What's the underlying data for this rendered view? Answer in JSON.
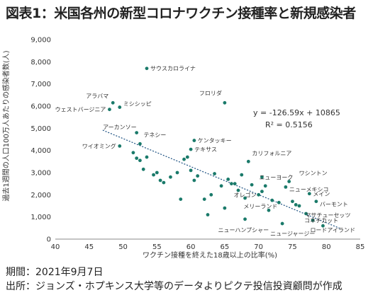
{
  "figure_title": "図表1：米国各州の新型コロナワクチン接種率と新規感染者",
  "notes": {
    "date": "期間：2021年9月7日",
    "source": "出所：ジョンズ・ホプキンス大学等のデータよりピクテ投信投資顧問が作成"
  },
  "colors": {
    "point": "#1a7a6a",
    "trend": "#1a4f80",
    "axis": "#888888",
    "text": "#333333"
  },
  "chart_data": {
    "type": "scatter",
    "title": "",
    "xlabel": "ワクチン接種を終えた18歳以上の比率(%)",
    "ylabel": "過去1週間の人口100万人あたりの感染者数(人)",
    "xlim": [
      40,
      85
    ],
    "ylim": [
      0,
      9000
    ],
    "xticks": [
      40,
      45,
      50,
      55,
      60,
      65,
      70,
      75,
      80,
      85
    ],
    "yticks": [
      0,
      1000,
      2000,
      3000,
      4000,
      5000,
      6000,
      7000,
      8000,
      9000
    ],
    "ytick_labels": [
      "0",
      "1,000",
      "2,000",
      "3,000",
      "4,000",
      "5,000",
      "6,000",
      "7,000",
      "8,000",
      "9,000"
    ],
    "grid": false,
    "equation": "y = -126.59x + 10865",
    "r_squared": "R² = 0.5156",
    "trendline": {
      "slope": -126.59,
      "intercept": 10865,
      "x_range": [
        47,
        82
      ]
    },
    "labeled_points": [
      {
        "label": "サウスカロライナ",
        "x": 53.5,
        "y": 7700
      },
      {
        "label": "アラバマ",
        "x": 48.5,
        "y": 6150
      },
      {
        "label": "ミシシッピ",
        "x": 49.5,
        "y": 5950
      },
      {
        "label": "ウェストバージニア",
        "x": 48,
        "y": 5850
      },
      {
        "label": "フロリダ",
        "x": 65,
        "y": 6150
      },
      {
        "label": "アーカンソー",
        "x": 52,
        "y": 4800
      },
      {
        "label": "テネシー",
        "x": 52.5,
        "y": 4300
      },
      {
        "label": "ケンタッキー",
        "x": 60.5,
        "y": 4450
      },
      {
        "label": "ワイオミング",
        "x": 49.5,
        "y": 4200
      },
      {
        "label": "テキサス",
        "x": 60,
        "y": 4050
      },
      {
        "label": "カリフォルニア",
        "x": 68.5,
        "y": 3500
      },
      {
        "label": "ニューヨーク",
        "x": 70.5,
        "y": 2800
      },
      {
        "label": "ワシントン",
        "x": 74.5,
        "y": 2600
      },
      {
        "label": "ニューメキシコ",
        "x": 74,
        "y": 2350
      },
      {
        "label": "オレゴン",
        "x": 70,
        "y": 2000
      },
      {
        "label": "メイン",
        "x": 77.5,
        "y": 2050
      },
      {
        "label": "バーモント",
        "x": 78.5,
        "y": 1700
      },
      {
        "label": "メリーランド",
        "x": 73,
        "y": 1650
      },
      {
        "label": "マサチューセッツ",
        "x": 77,
        "y": 1150
      },
      {
        "label": "コネチカット",
        "x": 78,
        "y": 850
      },
      {
        "label": "ロードアイランド",
        "x": 79.5,
        "y": 600
      },
      {
        "label": "ニューハンプシャー",
        "x": 68,
        "y": 900
      },
      {
        "label": "ニュージャージー",
        "x": 73.5,
        "y": 700
      }
    ],
    "unlabeled_points": [
      [
        51.5,
        3900
      ],
      [
        52,
        3650
      ],
      [
        52.5,
        3550
      ],
      [
        53,
        3150
      ],
      [
        53.5,
        3700
      ],
      [
        54.5,
        2900
      ],
      [
        55,
        3000
      ],
      [
        55.5,
        2650
      ],
      [
        56,
        2550
      ],
      [
        57,
        2800
      ],
      [
        58,
        3000
      ],
      [
        58.5,
        1800
      ],
      [
        59,
        3600
      ],
      [
        59.5,
        3700
      ],
      [
        60,
        3100
      ],
      [
        60.5,
        2650
      ],
      [
        61,
        2850
      ],
      [
        62,
        1800
      ],
      [
        62.5,
        1100
      ],
      [
        63,
        2000
      ],
      [
        63.5,
        2950
      ],
      [
        64.5,
        2400
      ],
      [
        65,
        1400
      ],
      [
        65.5,
        2700
      ],
      [
        66,
        2500
      ],
      [
        66.5,
        2500
      ],
      [
        67,
        2200
      ],
      [
        67.5,
        2900
      ],
      [
        68,
        1850
      ],
      [
        69,
        2450
      ],
      [
        70.5,
        2150
      ],
      [
        71,
        2400
      ],
      [
        71.5,
        1300
      ],
      [
        72,
        1750
      ],
      [
        75,
        1700
      ],
      [
        75.5,
        1550
      ],
      [
        76,
        1500
      ]
    ]
  }
}
